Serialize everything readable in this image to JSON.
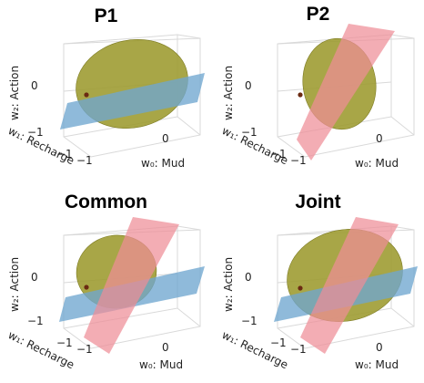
{
  "panels": [
    {
      "title": "P1",
      "show_red_plane": false
    },
    {
      "title": "P2",
      "show_red_plane": true
    },
    {
      "title": "Common",
      "show_red_plane": true
    },
    {
      "title": "Joint",
      "show_red_plane": true
    }
  ],
  "axes": {
    "w0_label": "w₀: Mud",
    "w1_label": "w₁: Recharge",
    "w2_label": "w₂: Action",
    "w0_tick": "0",
    "w1_ticks": [
      "−1",
      "−1"
    ],
    "w2_ticks": [
      "0",
      "−1"
    ]
  },
  "colors": {
    "ellipsoid": "#9c9a2e",
    "blue_plane": "#6fa7cf",
    "red_plane": "#ef8e97",
    "point": "#6b2a12"
  }
}
